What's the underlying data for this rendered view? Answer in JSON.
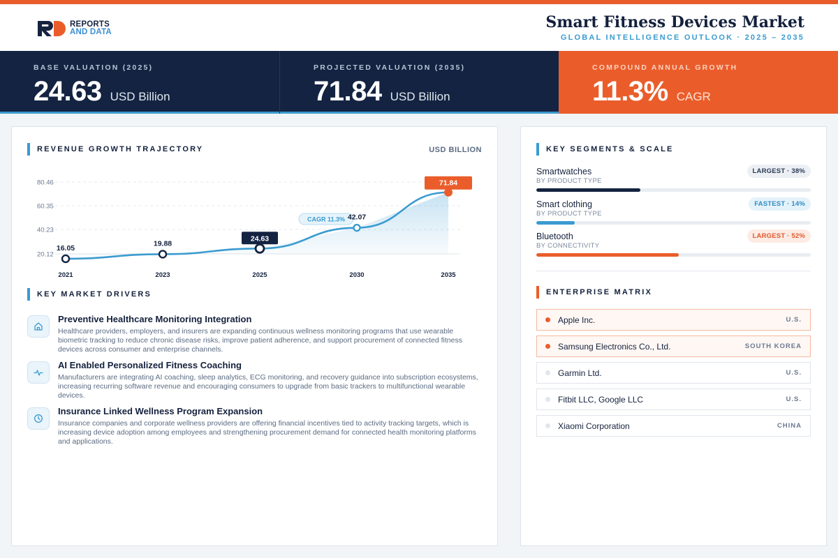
{
  "header": {
    "logo_line1": "REPORTS",
    "logo_line2": "AND DATA",
    "title": "Smart Fitness Devices Market",
    "subtitle": "GLOBAL INTELLIGENCE OUTLOOK  ·  2025 – 2035"
  },
  "kpis": [
    {
      "label": "BASE VALUATION (2025)",
      "value": "24.63",
      "unit": "USD Billion"
    },
    {
      "label": "PROJECTED VALUATION (2035)",
      "value": "71.84",
      "unit": "USD Billion"
    },
    {
      "label": "COMPOUND ANNUAL GROWTH",
      "value": "11.3%",
      "unit": "CAGR"
    }
  ],
  "colors": {
    "navy": "#132341",
    "orange": "#ea5d2b",
    "blue": "#3a9bd0"
  },
  "chart_section": {
    "title": "REVENUE GROWTH TRAJECTORY",
    "unit": "USD BILLION"
  },
  "chart_data": {
    "type": "area",
    "title": "REVENUE GROWTH TRAJECTORY",
    "ylabel": "USD BILLION",
    "x": [
      "2021",
      "2023",
      "2025",
      "2030",
      "2035"
    ],
    "values": [
      16.05,
      19.88,
      24.63,
      42.07,
      71.84
    ],
    "value_labels": [
      "16.05",
      "19.88",
      "24.63",
      "42.07",
      "71.84"
    ],
    "yticks": [
      "80.46",
      "60.35",
      "40.23",
      "20.12"
    ],
    "ylim": [
      20.12,
      80.46
    ],
    "grid": true,
    "annotation": "CAGR 11.3%"
  },
  "drivers_section": {
    "title": "KEY MARKET DRIVERS",
    "items": [
      {
        "icon": "home-icon",
        "title": "Preventive Healthcare Monitoring Integration",
        "text": "Healthcare providers, employers, and insurers are expanding continuous wellness monitoring programs that use wearable biometric tracking to reduce chronic disease risks, improve patient adherence, and support procurement of connected fitness devices across consumer and enterprise channels."
      },
      {
        "icon": "pulse-icon",
        "title": "AI Enabled Personalized Fitness Coaching",
        "text": "Manufacturers are integrating AI coaching, sleep analytics, ECG monitoring, and recovery guidance into subscription ecosystems, increasing recurring software revenue and encouraging consumers to upgrade from basic trackers to multifunctional wearable devices."
      },
      {
        "icon": "clock-icon",
        "title": "Insurance Linked Wellness Program Expansion",
        "text": "Insurance companies and corporate wellness providers are offering financial incentives tied to activity tracking targets, which is increasing device adoption among employees and strengthening procurement demand for connected health monitoring platforms and applications."
      }
    ]
  },
  "segments_section": {
    "title": "KEY SEGMENTS & SCALE",
    "items": [
      {
        "name": "Smartwatches",
        "sub": "BY PRODUCT TYPE",
        "badge": "LARGEST · 38%",
        "share": 0.38,
        "color": "#132341",
        "badge_bg": "#eceff3",
        "badge_fg": "#2a3a55"
      },
      {
        "name": "Smart clothing",
        "sub": "BY PRODUCT TYPE",
        "badge": "FASTEST · 14%",
        "share": 0.14,
        "color": "#3a9bd0",
        "badge_bg": "#e4f2fa",
        "badge_fg": "#2f8cc3"
      },
      {
        "name": "Bluetooth",
        "sub": "BY CONNECTIVITY",
        "badge": "LARGEST · 52%",
        "share": 0.52,
        "color": "#ea5d2b",
        "badge_bg": "#fdebe4",
        "badge_fg": "#e0592b"
      }
    ]
  },
  "enterprise_section": {
    "title": "ENTERPRISE MATRIX",
    "items": [
      {
        "name": "Apple Inc.",
        "country": "U.S.",
        "highlight": true
      },
      {
        "name": "Samsung Electronics Co., Ltd.",
        "country": "SOUTH KOREA",
        "highlight": true
      },
      {
        "name": "Garmin Ltd.",
        "country": "U.S.",
        "highlight": false
      },
      {
        "name": "Fitbit LLC, Google LLC",
        "country": "U.S.",
        "highlight": false
      },
      {
        "name": "Xiaomi Corporation",
        "country": "CHINA",
        "highlight": false
      }
    ]
  }
}
